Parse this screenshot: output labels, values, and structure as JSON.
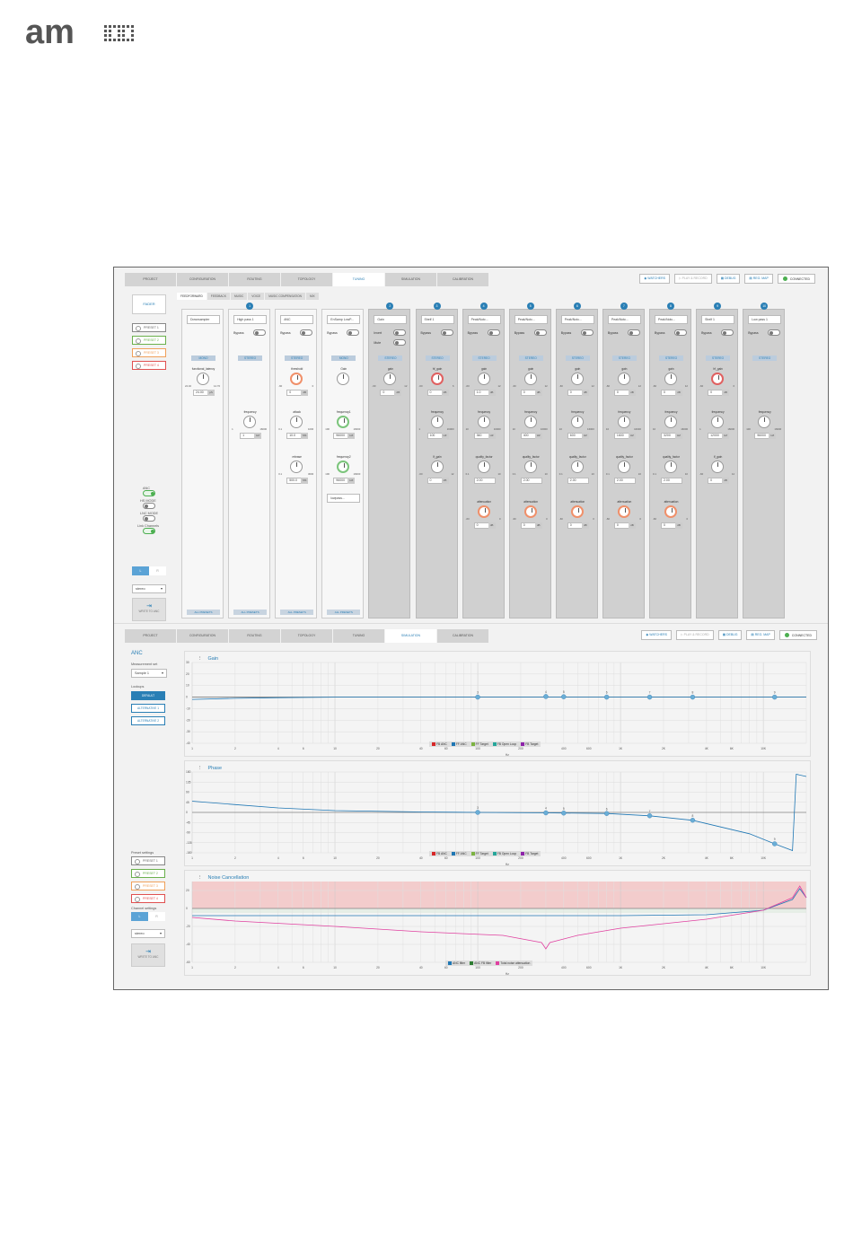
{
  "logo": {
    "name": "am-logo",
    "text": "am"
  },
  "topnav": {
    "tabs": [
      "PROJECT",
      "CONFIGURATION",
      "ROUTING",
      "TOPOLOGY",
      "TUNING",
      "SIMULATION",
      "CALIBRATION"
    ],
    "active": 4
  },
  "topright": {
    "watchers": "WATCHERS",
    "play_record": "PLAY & RECORD",
    "debug": "DEBUG",
    "reg_map": "REG. MAP",
    "connected": "CONNECTED"
  },
  "left": {
    "fader": "FADER",
    "presets": [
      "PRESET 1",
      "PRESET 2",
      "PRESET 3",
      "PRESET 4"
    ],
    "anc": "ANC",
    "hs_mode": "HS MODE",
    "lnc_mode": "LNC MODE",
    "link_channels": "Link Channels",
    "channel_a": "L",
    "channel_b": "R",
    "stereo_select": "stereo",
    "write": "WRITE TO ANC"
  },
  "subtabs": [
    "FEEDFORWARD",
    "FEEDBACK",
    "MUSIC",
    "VOICE",
    "MUSIC COMPENSATION",
    "MIX"
  ],
  "strips": [
    {
      "type": "Downsampler",
      "mode": "MONO",
      "num": "",
      "p1": "functional_latency",
      "v1": "24.00",
      "u1": "µS",
      "range1": [
        "24.40",
        "14.70"
      ],
      "all": "ALL PRESETS"
    },
    {
      "type": "High pass 1",
      "num": "1",
      "bypass": "Bypass",
      "mode": "STEREO",
      "p2": "frequency",
      "v2": "1",
      "u2": "HZ",
      "range2": [
        "1",
        "16000"
      ],
      "all": "ALL PRESETS"
    },
    {
      "type": "ANC",
      "bypass": "Bypass",
      "mode": "STEREO",
      "p1": "threshold",
      "v1": "0",
      "u1": "dB",
      "range1": [
        "-60",
        "0"
      ],
      "p2": "attack",
      "v2": "10.0",
      "u2": "MS",
      "range2": [
        "0.1",
        "1000"
      ],
      "p3": "release",
      "v3": "500.0",
      "u3": "MS",
      "range3": [
        "0.1",
        "3000"
      ],
      "all": "ALL PRESETS"
    },
    {
      "type": "EnSamp LowP...",
      "bypass": "Bypass",
      "mode": "MONO",
      "p1": "Gain",
      "v1": "",
      "p2": "frequency1",
      "v2": "96000",
      "u2": "HZ",
      "range2": [
        "100",
        "16000"
      ],
      "p3": "frequency2",
      "v3": "96000",
      "u3": "HZ",
      "range3": [
        "100",
        "16000"
      ],
      "sel4": "lowpass...",
      "all": "ALL PRESETS"
    },
    {
      "type": "Gain",
      "num": "2",
      "invert": "Invert",
      "mute": "Mute",
      "mode": "STEREO",
      "p1": "gain",
      "v1": "0",
      "u1": "dB",
      "range1": [
        "-60",
        "12"
      ]
    },
    {
      "type": "Shelf 1",
      "num": "3",
      "bypass": "Bypass",
      "mode": "STEREO",
      "p1": "hf_gain",
      "v1": "0",
      "u1": "dB",
      "range1": [
        "-60",
        "6"
      ],
      "p2": "frequency",
      "v2": "100",
      "u2": "HZ",
      "range2": [
        "1",
        "16000"
      ],
      "p3": "lf_gain",
      "v3": "0",
      "u3": "dB",
      "range3": [
        "-60",
        "12"
      ]
    },
    {
      "type": "Peak/Notc...",
      "num": "4",
      "bypass": "Bypass",
      "mode": "STEREO",
      "p1": "gain",
      "v1": "1.0",
      "u1": "dB",
      "range1": [
        "-60",
        "12"
      ],
      "p2": "frequency",
      "v2": "360",
      "u2": "HZ",
      "range2": [
        "10",
        "16000"
      ],
      "p3": "quality_factor",
      "v3": "2.00",
      "range3": [
        "0.1",
        "10"
      ],
      "p4": "attenuation",
      "v4": "0",
      "u4": "dB",
      "range4": [
        "-60",
        "0"
      ]
    },
    {
      "type": "Peak/Notc...",
      "num": "5",
      "bypass": "Bypass",
      "mode": "STEREO",
      "p1": "gain",
      "v1": "0",
      "u1": "dB",
      "range1": [
        "-60",
        "12"
      ],
      "p2": "frequency",
      "v2": "400",
      "u2": "HZ",
      "range2": [
        "10",
        "16000"
      ],
      "p3": "quality_factor",
      "v3": "2.00",
      "range3": [
        "0.1",
        "10"
      ],
      "p4": "attenuation",
      "v4": "0",
      "u4": "dB",
      "range4": [
        "-60",
        "0"
      ]
    },
    {
      "type": "Peak/Notc...",
      "num": "6",
      "bypass": "Bypass",
      "mode": "STEREO",
      "p1": "gain",
      "v1": "0",
      "u1": "dB",
      "range1": [
        "-60",
        "12"
      ],
      "p2": "frequency",
      "v2": "600",
      "u2": "HZ",
      "range2": [
        "10",
        "16000"
      ],
      "p3": "quality_factor",
      "v3": "2.00",
      "range3": [
        "0.1",
        "10"
      ],
      "p4": "attenuation",
      "v4": "0",
      "u4": "dB",
      "range4": [
        "-60",
        "0"
      ]
    },
    {
      "type": "Peak/Notc...",
      "num": "7",
      "bypass": "Bypass",
      "mode": "STEREO",
      "p1": "gain",
      "v1": "0",
      "u1": "dB",
      "range1": [
        "-60",
        "12"
      ],
      "p2": "frequency",
      "v2": "1600",
      "u2": "HZ",
      "range2": [
        "10",
        "16000"
      ],
      "p3": "quality_factor",
      "v3": "2.00",
      "range3": [
        "0.1",
        "10"
      ],
      "p4": "attenuation",
      "v4": "0",
      "u4": "dB",
      "range4": [
        "-60",
        "0"
      ]
    },
    {
      "type": "Peak/Notc...",
      "num": "8",
      "bypass": "Bypass",
      "mode": "STEREO",
      "p1": "gain",
      "v1": "0",
      "u1": "dB",
      "range1": [
        "-60",
        "12"
      ],
      "p2": "frequency",
      "v2": "3200",
      "u2": "HZ",
      "range2": [
        "10",
        "16000"
      ],
      "p3": "quality_factor",
      "v3": "2.00",
      "range3": [
        "0.1",
        "10"
      ],
      "p4": "attenuation",
      "v4": "0",
      "u4": "dB",
      "range4": [
        "-60",
        "0"
      ]
    },
    {
      "type": "Shelf 1",
      "num": "9",
      "bypass": "Bypass",
      "mode": "STEREO",
      "p1": "hf_gain",
      "v1": "0",
      "u1": "dB",
      "range1": [
        "-60",
        "6"
      ],
      "p2": "frequency",
      "v2": "12000",
      "u2": "HZ",
      "range2": [
        "1",
        "16000"
      ],
      "p3": "lf_gain",
      "v3": "0",
      "u3": "dB",
      "range3": [
        "-60",
        "12"
      ]
    },
    {
      "type": "Low pass 1",
      "num": "10",
      "bypass": "Bypass",
      "mode": "STEREO",
      "p2": "frequency",
      "v2": "96000",
      "u2": "HZ",
      "range2": [
        "100",
        "16000"
      ]
    }
  ],
  "sim": {
    "tabs": [
      "PROJECT",
      "CONFIGURATION",
      "ROUTING",
      "TOPOLOGY",
      "TUNING",
      "SIMULATION",
      "CALIBRATION"
    ],
    "active": 5,
    "watchers": "WATCHERS",
    "play_record": "PLAY & RECORD",
    "debug": "DEBUG",
    "reg_map": "REG. MAP",
    "connected": "CONNECTED",
    "anc": "ANC",
    "measurement_label": "Measurement set",
    "measurement": "Sample 1",
    "lookups": "Lookups",
    "lookup_btns": [
      "DEFAULT",
      "ALTERNATIVE 1",
      "ALTERNATIVE 2"
    ],
    "preset_settings": "Preset settings",
    "presets": [
      "PRESET 1",
      "PRESET 2",
      "PRESET 3",
      "PRESET 4"
    ],
    "channel_settings": "Channel settings",
    "channel_a": "L",
    "channel_b": "R",
    "stereo": "stereo",
    "write": "WRITE TO ANC"
  },
  "chart_data": [
    {
      "type": "line",
      "title": "Gain",
      "ylabel": "dB",
      "xlabel": "Hz",
      "x_scale": "log",
      "xlim": [
        1,
        20000
      ],
      "ylim": [
        -40,
        30
      ],
      "yticks": [
        30,
        20,
        10,
        0,
        -10,
        -20,
        -30,
        -40
      ],
      "xticks": [
        "1",
        "2",
        "4",
        "6",
        "10",
        "20",
        "40",
        "60",
        "100",
        "200",
        "400",
        "600",
        "1K",
        "2K",
        "4K",
        "6K",
        "10K"
      ],
      "grid": true,
      "legend": [
        {
          "name": "FB ANC",
          "color": "#d62728"
        },
        {
          "name": "FF ANC",
          "color": "#1f77b4"
        },
        {
          "name": "FF Target",
          "color": "#7cb342"
        },
        {
          "name": "FB Open Loop",
          "color": "#26a69a"
        },
        {
          "name": "FB Target",
          "color": "#8e24aa"
        }
      ],
      "series": [
        {
          "name": "FF ANC",
          "x": [
            1,
            2,
            4,
            10,
            40,
            100,
            1000,
            20000
          ],
          "y": [
            -2,
            -1,
            -0.5,
            0,
            0,
            0,
            0,
            0
          ]
        }
      ],
      "markers": [
        {
          "label": "3",
          "x": 100,
          "y": 0
        },
        {
          "label": "4",
          "x": 300,
          "y": 0.5
        },
        {
          "label": "5",
          "x": 400,
          "y": 0.3
        },
        {
          "label": "6",
          "x": 800,
          "y": 0
        },
        {
          "label": "7",
          "x": 1600,
          "y": 0
        },
        {
          "label": "8",
          "x": 3200,
          "y": 0
        },
        {
          "label": "9",
          "x": 12000,
          "y": 0
        }
      ]
    },
    {
      "type": "line",
      "title": "Phase",
      "ylabel": "deg",
      "xlabel": "Hz",
      "x_scale": "log",
      "xlim": [
        1,
        20000
      ],
      "ylim": [
        -180,
        180
      ],
      "yticks": [
        180,
        135,
        90,
        45,
        0,
        -45,
        -90,
        -135,
        -180
      ],
      "xticks": [
        "1",
        "2",
        "4",
        "6",
        "10",
        "20",
        "40",
        "60",
        "100",
        "200",
        "400",
        "600",
        "1K",
        "2K",
        "4K",
        "6K",
        "10K"
      ],
      "grid": true,
      "legend": [
        {
          "name": "FB ANC",
          "color": "#d62728"
        },
        {
          "name": "FF ANC",
          "color": "#1f77b4"
        },
        {
          "name": "FF Target",
          "color": "#7cb342"
        },
        {
          "name": "FB Open Loop",
          "color": "#26a69a"
        },
        {
          "name": "FB Target",
          "color": "#8e24aa"
        }
      ],
      "series": [
        {
          "name": "FF ANC",
          "x": [
            1,
            2,
            4,
            10,
            40,
            100,
            300,
            800,
            1600,
            3200,
            8000,
            12000,
            16000,
            17000,
            20000
          ],
          "y": [
            50,
            35,
            20,
            8,
            2,
            0,
            -2,
            -5,
            -15,
            -35,
            -95,
            -140,
            -170,
            170,
            160
          ]
        }
      ],
      "markers": [
        {
          "label": "3",
          "x": 100,
          "y": 0
        },
        {
          "label": "4",
          "x": 300,
          "y": -2
        },
        {
          "label": "5",
          "x": 400,
          "y": -3
        },
        {
          "label": "6",
          "x": 800,
          "y": -5
        },
        {
          "label": "7",
          "x": 1600,
          "y": -15
        },
        {
          "label": "8",
          "x": 3200,
          "y": -35
        },
        {
          "label": "9",
          "x": 12000,
          "y": -140
        }
      ]
    },
    {
      "type": "line",
      "title": "Noise Cancellation",
      "ylabel": "dB",
      "xlabel": "Hz",
      "x_scale": "log",
      "xlim": [
        1,
        20000
      ],
      "ylim": [
        -60,
        30
      ],
      "yticks": [
        20,
        0,
        -20,
        -40,
        -60
      ],
      "xticks": [
        "1",
        "2",
        "4",
        "6",
        "10",
        "20",
        "40",
        "60",
        "100",
        "200",
        "400",
        "600",
        "1K",
        "2K",
        "4K",
        "6K",
        "10K"
      ],
      "grid": true,
      "shaded_band": [
        0,
        30
      ],
      "legend": [
        {
          "name": "ANC filter",
          "color": "#1f77b4"
        },
        {
          "name": "ANC FB filter",
          "color": "#2e7d32"
        },
        {
          "name": "Total noise attenuation",
          "color": "#e040a0"
        }
      ],
      "series": [
        {
          "name": "ANC filter",
          "x": [
            1,
            100,
            1000,
            4000,
            10000,
            16000,
            18000,
            20000
          ],
          "y": [
            -8,
            -8,
            -8,
            -7,
            -2,
            10,
            22,
            12
          ]
        },
        {
          "name": "Total noise attenuation",
          "x": [
            1,
            2,
            10,
            40,
            150,
            280,
            300,
            320,
            500,
            1000,
            4000,
            10000,
            16000,
            18000,
            20000
          ],
          "y": [
            -10,
            -14,
            -20,
            -26,
            -30,
            -38,
            -45,
            -38,
            -30,
            -22,
            -12,
            -2,
            12,
            25,
            12
          ]
        }
      ]
    }
  ]
}
